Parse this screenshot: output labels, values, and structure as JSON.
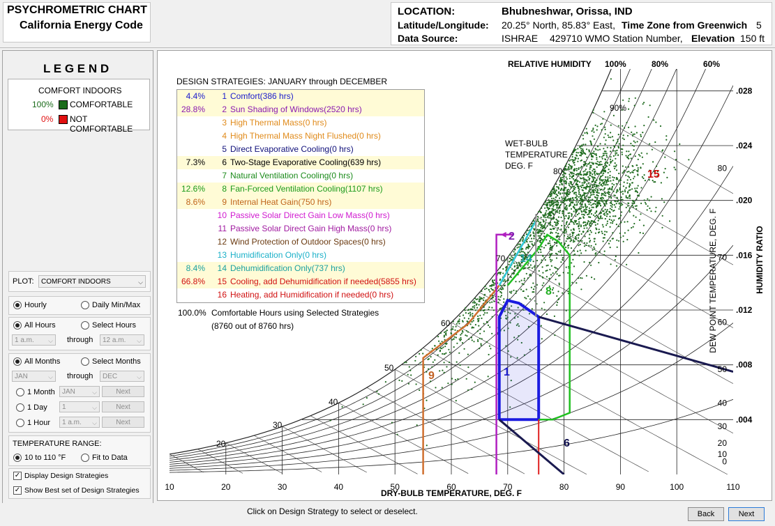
{
  "header": {
    "title_line1": "PSYCHROMETRIC CHART",
    "title_line2": "California Energy Code",
    "location_label": "LOCATION:",
    "location_value": "Bhubneshwar, Orissa, IND",
    "latlon_label": "Latitude/Longitude:",
    "latlon_value": "20.25° North, 85.83° East,",
    "timezone_label": "Time Zone from Greenwich",
    "timezone_value": "5",
    "source_label": "Data Source:",
    "source_value": "ISHRAE",
    "station_value": "429710 WMO Station Number,",
    "elevation_label": "Elevation",
    "elevation_value": "150 ft"
  },
  "legend": {
    "title": "L E G E N D",
    "subtitle": "COMFORT INDOORS",
    "items": [
      {
        "pct": "100%",
        "label": "COMFORTABLE",
        "color": "#1a6b1a"
      },
      {
        "pct": "0%",
        "label": "NOT COMFORTABLE",
        "color": "#e01010"
      }
    ]
  },
  "controls": {
    "plot_label": "PLOT:",
    "plot_value": "COMFORT INDOORS",
    "hourly": "Hourly",
    "daily": "Daily Min/Max",
    "all_hours": "All Hours",
    "select_hours": "Select Hours",
    "hour_from": "1 a.m.",
    "hour_through": "through",
    "hour_to": "12 a.m.",
    "all_months": "All Months",
    "select_months": "Select Months",
    "month_from": "JAN",
    "month_through": "through",
    "month_to": "DEC",
    "one_month": "1 Month",
    "one_month_val": "JAN",
    "one_day": "1 Day",
    "one_day_val": "1",
    "one_hour": "1 Hour",
    "one_hour_val": "1 a.m.",
    "next": "Next",
    "temp_range_label": "TEMPERATURE RANGE:",
    "range_a": "10 to 110 °F",
    "range_b": "Fit to Data",
    "display_strategies": "Display Design Strategies",
    "show_best": "Show Best set of Design Strategies"
  },
  "strategies": {
    "title": "DESIGN STRATEGIES:  JANUARY through DECEMBER",
    "items": [
      {
        "pct": "4.4%",
        "num": "1",
        "label": "Comfort(386 hrs)",
        "color": "#1a1acc",
        "bg": "#fffbd6"
      },
      {
        "pct": "28.8%",
        "num": "2",
        "label": "Sun Shading of Windows(2520 hrs)",
        "color": "#8a1ab0",
        "bg": "#fffbd6"
      },
      {
        "pct": "",
        "num": "3",
        "label": "High Thermal Mass(0 hrs)",
        "color": "#e08a1a",
        "bg": "#ffffff"
      },
      {
        "pct": "",
        "num": "4",
        "label": "High Thermal Mass Night Flushed(0 hrs)",
        "color": "#e08a1a",
        "bg": "#ffffff"
      },
      {
        "pct": "",
        "num": "5",
        "label": "Direct Evaporative Cooling(0 hrs)",
        "color": "#10107a",
        "bg": "#ffffff"
      },
      {
        "pct": "7.3%",
        "num": "6",
        "label": "Two-Stage Evaporative Cooling(639 hrs)",
        "color": "#000000",
        "bg": "#fffbd6"
      },
      {
        "pct": "",
        "num": "7",
        "label": "Natural Ventilation Cooling(0 hrs)",
        "color": "#1a8a1a",
        "bg": "#ffffff"
      },
      {
        "pct": "12.6%",
        "num": "8",
        "label": "Fan-Forced Ventilation Cooling(1107 hrs)",
        "color": "#1a9a1a",
        "bg": "#fffbd6"
      },
      {
        "pct": "8.6%",
        "num": "9",
        "label": "Internal Heat Gain(750 hrs)",
        "color": "#c0641a",
        "bg": "#fffbd6"
      },
      {
        "pct": "",
        "num": "10",
        "label": "Passive Solar Direct Gain Low Mass(0 hrs)",
        "color": "#d01ad0",
        "bg": "#ffffff"
      },
      {
        "pct": "",
        "num": "11",
        "label": "Passive Solar Direct Gain High Mass(0 hrs)",
        "color": "#a01aa0",
        "bg": "#ffffff"
      },
      {
        "pct": "",
        "num": "12",
        "label": "Wind Protection of Outdoor Spaces(0 hrs)",
        "color": "#6a3a10",
        "bg": "#ffffff"
      },
      {
        "pct": "",
        "num": "13",
        "label": "Humidification Only(0 hrs)",
        "color": "#1ab0c8",
        "bg": "#ffffff"
      },
      {
        "pct": "8.4%",
        "num": "14",
        "label": "Dehumidification Only(737 hrs)",
        "color": "#1aa0a0",
        "bg": "#fffbd6"
      },
      {
        "pct": "66.8%",
        "num": "15",
        "label": "Cooling, add Dehumidification if needed(5855 hrs)",
        "color": "#d01010",
        "bg": "#fffbd6"
      },
      {
        "pct": "",
        "num": "16",
        "label": "Heating, add Humidification if needed(0 hrs)",
        "color": "#d01010",
        "bg": "#ffffff"
      }
    ],
    "summary_pct": "100.0%",
    "summary_line1": "Comfortable Hours using Selected Strategies",
    "summary_line2": "(8760 out of 8760 hrs)"
  },
  "chart_data": {
    "type": "scatter",
    "xlabel": "DRY-BULB TEMPERATURE, DEG. F",
    "ylabel_right": "HUMIDITY RATIO",
    "ylabel_dew": "DEW POINT TEMPERATURE, DEG. F",
    "rh_label": "RELATIVE HUMIDITY",
    "wb_label": [
      "WET-BULB",
      "TEMPERATURE",
      "DEG. F"
    ],
    "xlim": [
      10,
      110
    ],
    "ylim": [
      0,
      0.03
    ],
    "x_ticks": [
      10,
      20,
      30,
      40,
      50,
      60,
      70,
      80,
      90,
      100,
      110
    ],
    "hr_ticks": [
      ".028",
      ".024",
      ".020",
      ".016",
      ".012",
      ".008",
      ".004"
    ],
    "dew_ticks": [
      "80",
      "70",
      "60",
      "50",
      "40",
      "30",
      "20",
      "10",
      "0"
    ],
    "rh_ticks": [
      "100%",
      "80%",
      "60%"
    ],
    "rh_curve_label": "90%",
    "wb_ticks": [
      "20",
      "30",
      "40",
      "50",
      "60",
      "70",
      "80"
    ],
    "zone_labels": [
      "2",
      "9",
      "14",
      "8",
      "1",
      "6",
      "15"
    ],
    "point_color": "#1f6b1f",
    "point_count": 2400
  },
  "footer": {
    "hint": "Click on Design Strategy to select or deselect.",
    "back": "Back",
    "next": "Next"
  }
}
